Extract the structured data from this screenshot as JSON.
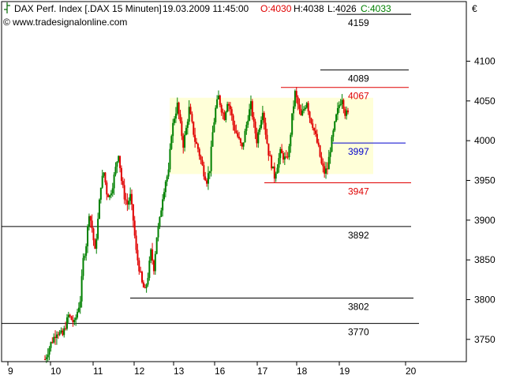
{
  "header": {
    "icon": "bar-chart-icon",
    "instrument": "DAX Perf. Index [.DAX  15 Minuten]",
    "datetime": "19.03.2009 11:45:00",
    "open": "O:4030",
    "high": "H:4038",
    "low": "L:4026",
    "close": "C:4033",
    "website": "www.tradesignalonline.com",
    "copyright": "©"
  },
  "currency_symbol": "€",
  "colors": {
    "background": "#ffffff",
    "up": "#008000",
    "down": "#e00000",
    "range_box": "#ffffd8",
    "level_black": "#000000",
    "level_red": "#e00000",
    "level_blue": "#0000cc"
  },
  "chart_data": {
    "type": "candlestick",
    "title": "DAX Perf. Index [.DAX  15 Minuten]",
    "x_axis_labels": [
      "9",
      "10",
      "11",
      "12",
      "13",
      "16",
      "17",
      "18",
      "19",
      "20"
    ],
    "y_axis_ticks": [
      3750,
      3800,
      3850,
      3900,
      3950,
      4000,
      4050,
      4100
    ],
    "ylim": [
      3722,
      4175
    ],
    "grid": false,
    "range_box": {
      "y_low": 3958,
      "y_high": 4054,
      "x_start": "13",
      "x_end": "19"
    },
    "levels": [
      {
        "label": "4159",
        "value": 4159,
        "color": "black"
      },
      {
        "label": "4089",
        "value": 4089,
        "color": "black"
      },
      {
        "label": "4067",
        "value": 4067,
        "color": "red"
      },
      {
        "label": "3997",
        "value": 3997,
        "color": "blue"
      },
      {
        "label": "3947",
        "value": 3947,
        "color": "red"
      },
      {
        "label": "3892",
        "value": 3892,
        "color": "black"
      },
      {
        "label": "3802",
        "value": 3802,
        "color": "black"
      },
      {
        "label": "3770",
        "value": 3770,
        "color": "black"
      }
    ],
    "price_path": [
      [
        0,
        3725
      ],
      [
        4,
        3745
      ],
      [
        8,
        3760
      ],
      [
        12,
        3755
      ],
      [
        16,
        3780
      ],
      [
        20,
        3770
      ],
      [
        24,
        3800
      ],
      [
        26,
        3850
      ],
      [
        28,
        3870
      ],
      [
        30,
        3910
      ],
      [
        32,
        3890
      ],
      [
        34,
        3860
      ],
      [
        36,
        3900
      ],
      [
        38,
        3945
      ],
      [
        40,
        3960
      ],
      [
        42,
        3935
      ],
      [
        44,
        3930
      ],
      [
        46,
        3945
      ],
      [
        48,
        3965
      ],
      [
        50,
        3985
      ],
      [
        52,
        3950
      ],
      [
        54,
        3930
      ],
      [
        56,
        3920
      ],
      [
        58,
        3930
      ],
      [
        60,
        3900
      ],
      [
        62,
        3860
      ],
      [
        64,
        3840
      ],
      [
        66,
        3820
      ],
      [
        68,
        3810
      ],
      [
        70,
        3830
      ],
      [
        72,
        3860
      ],
      [
        74,
        3840
      ],
      [
        76,
        3880
      ],
      [
        78,
        3900
      ],
      [
        80,
        3930
      ],
      [
        82,
        3950
      ],
      [
        84,
        3960
      ],
      [
        86,
        4010
      ],
      [
        88,
        4030
      ],
      [
        90,
        4045
      ],
      [
        92,
        4020
      ],
      [
        94,
        3995
      ],
      [
        96,
        4015
      ],
      [
        98,
        4040
      ],
      [
        100,
        4020
      ],
      [
        102,
        4000
      ],
      [
        104,
        3990
      ],
      [
        106,
        3975
      ],
      [
        108,
        3960
      ],
      [
        110,
        3950
      ],
      [
        112,
        3965
      ],
      [
        114,
        4010
      ],
      [
        116,
        4040
      ],
      [
        118,
        4055
      ],
      [
        120,
        4040
      ],
      [
        122,
        4030
      ],
      [
        124,
        4050
      ],
      [
        126,
        4040
      ],
      [
        128,
        4020
      ],
      [
        130,
        4010
      ],
      [
        132,
        4000
      ],
      [
        134,
        3990
      ],
      [
        136,
        4010
      ],
      [
        138,
        4030
      ],
      [
        140,
        4045
      ],
      [
        142,
        4020
      ],
      [
        144,
        4000
      ],
      [
        146,
        4020
      ],
      [
        148,
        4040
      ],
      [
        150,
        4010
      ],
      [
        152,
        3985
      ],
      [
        154,
        3970
      ],
      [
        156,
        3955
      ],
      [
        158,
        3970
      ],
      [
        160,
        3985
      ],
      [
        162,
        3980
      ],
      [
        164,
        3975
      ],
      [
        166,
        3990
      ],
      [
        168,
        4030
      ],
      [
        170,
        4060
      ],
      [
        172,
        4045
      ],
      [
        174,
        4030
      ],
      [
        176,
        4040
      ],
      [
        178,
        4050
      ],
      [
        180,
        4030
      ],
      [
        182,
        4020
      ],
      [
        184,
        4005
      ],
      [
        186,
        3990
      ],
      [
        188,
        3970
      ],
      [
        190,
        3960
      ],
      [
        192,
        3965
      ],
      [
        194,
        3990
      ],
      [
        196,
        4010
      ],
      [
        198,
        4030
      ],
      [
        200,
        4045
      ],
      [
        202,
        4055
      ],
      [
        204,
        4035
      ],
      [
        206,
        4033
      ]
    ]
  }
}
